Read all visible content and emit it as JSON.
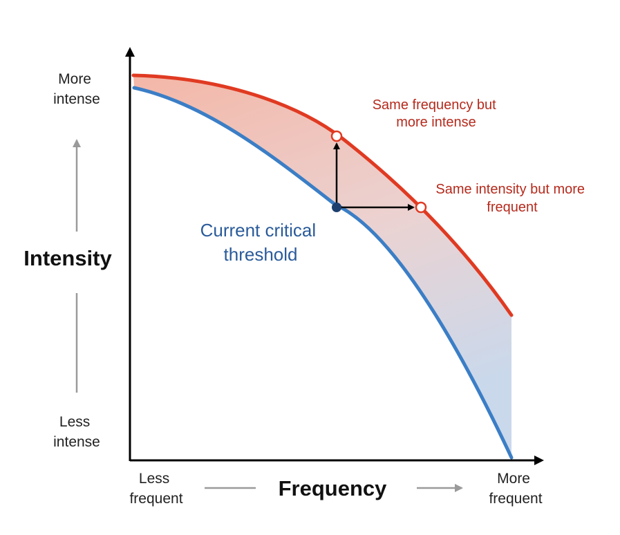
{
  "y_axis": {
    "title": "Intensity",
    "top_label": [
      "More",
      "intense"
    ],
    "bottom_label": [
      "Less",
      "intense"
    ]
  },
  "x_axis": {
    "title": "Frequency",
    "left_label": [
      "Less",
      "frequent"
    ],
    "right_label": [
      "More",
      "frequent"
    ]
  },
  "annotations": {
    "current_threshold": [
      "Current critical",
      "threshold"
    ],
    "same_frequency": [
      "Same frequency but",
      "more intense"
    ],
    "same_intensity": [
      "Same intensity but more",
      "frequent"
    ]
  },
  "colors": {
    "future_curve": "#e03a22",
    "current_curve": "#3b7ec6",
    "current_point": "#1e3f6e",
    "arrow": "#000000",
    "guide_arrow": "#9a9a9a",
    "red_text": "#b52a1c",
    "blue_text": "#2a5b9a"
  },
  "icons": {
    "up_arrow": "arrow-up-icon",
    "right_arrow": "arrow-right-icon"
  }
}
